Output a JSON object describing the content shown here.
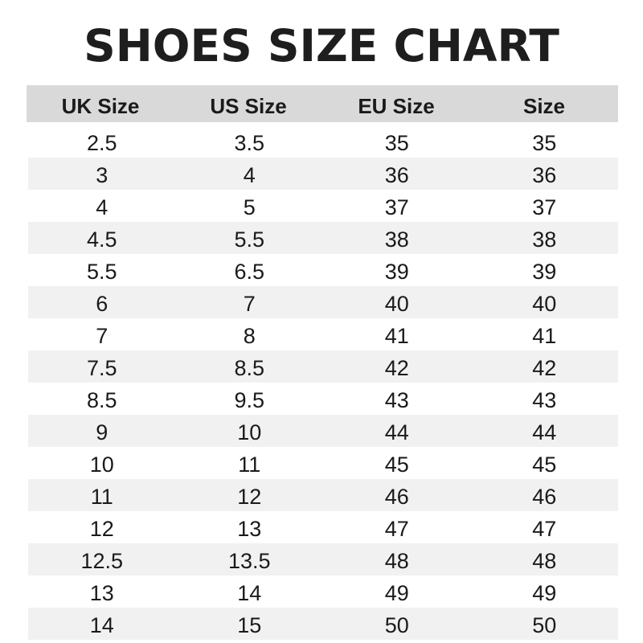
{
  "title": "SHOES SIZE CHART",
  "headers": [
    "UK Size",
    "US Size",
    "EU Size",
    "Size"
  ],
  "rows": [
    [
      "2.5",
      "3.5",
      "35",
      "35"
    ],
    [
      "3",
      "4",
      "36",
      "36"
    ],
    [
      "4",
      "5",
      "37",
      "37"
    ],
    [
      "4.5",
      "5.5",
      "38",
      "38"
    ],
    [
      "5.5",
      "6.5",
      "39",
      "39"
    ],
    [
      "6",
      "7",
      "40",
      "40"
    ],
    [
      "7",
      "8",
      "41",
      "41"
    ],
    [
      "7.5",
      "8.5",
      "42",
      "42"
    ],
    [
      "8.5",
      "9.5",
      "43",
      "43"
    ],
    [
      "9",
      "10",
      "44",
      "44"
    ],
    [
      "10",
      "11",
      "45",
      "45"
    ],
    [
      "11",
      "12",
      "46",
      "46"
    ],
    [
      "12",
      "13",
      "47",
      "47"
    ],
    [
      "12.5",
      "13.5",
      "48",
      "48"
    ],
    [
      "13",
      "14",
      "49",
      "49"
    ],
    [
      "14",
      "15",
      "50",
      "50"
    ]
  ],
  "colors": {
    "header_bg": "#d9d9d9",
    "alt_row_bg": "#f1f1f1",
    "text": "#1a1a1a"
  }
}
